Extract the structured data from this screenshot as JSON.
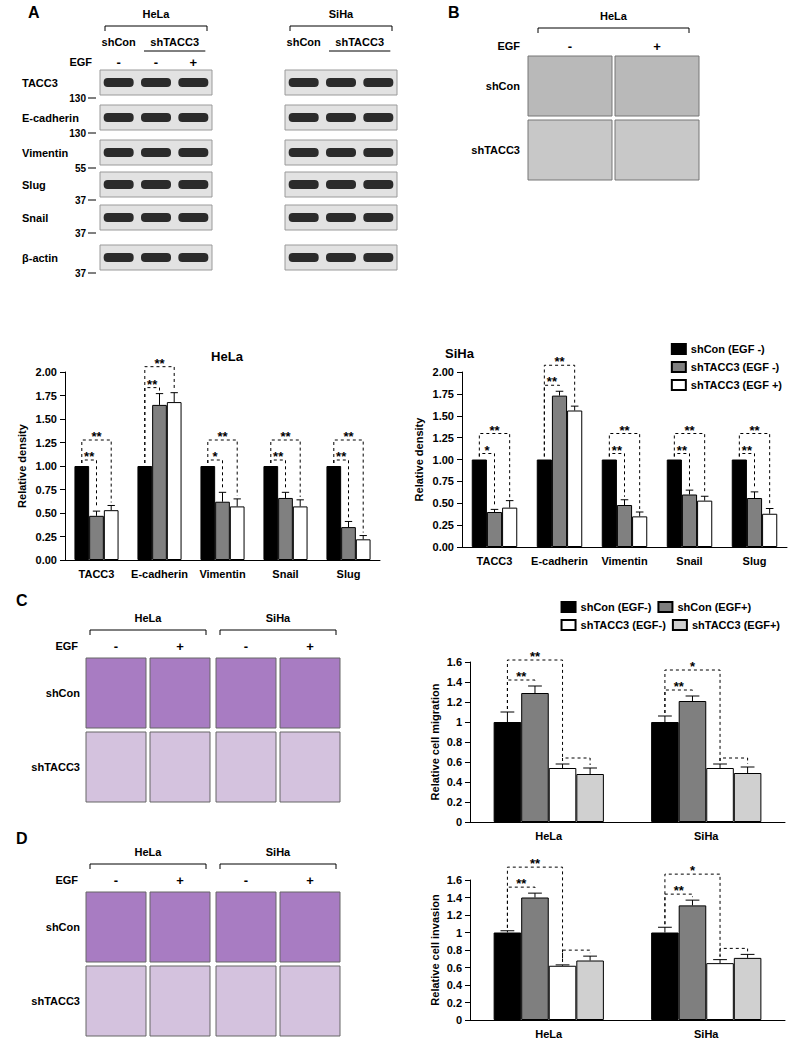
{
  "chart_data": [
    {
      "type": "bar",
      "title": "HeLa",
      "y_label": "Relative density",
      "categories": [
        "TACC3",
        "E-cadherin",
        "Vimentin",
        "Snail",
        "Slug"
      ],
      "series": [
        {
          "name": "shCon (EGF -)",
          "color": "#000000",
          "values": [
            1,
            1,
            1,
            1,
            1
          ],
          "errors": [
            0,
            0,
            0,
            0,
            0
          ]
        },
        {
          "name": "shTACC3 (EGF -)",
          "color": "#808080",
          "values": [
            0.47,
            1.65,
            0.62,
            0.66,
            0.35
          ],
          "errors": [
            0.05,
            0.12,
            0.1,
            0.06,
            0.06
          ]
        },
        {
          "name": "shTACC3 (EGF +)",
          "color": "#ffffff",
          "values": [
            0.53,
            1.68,
            0.57,
            0.57,
            0.22
          ],
          "errors": [
            0.05,
            0.1,
            0.08,
            0.07,
            0.04
          ]
        }
      ],
      "ylim": [
        0,
        2
      ],
      "yticks": [
        {
          "value": 0,
          "label": "0.00"
        },
        {
          "value": 0.25,
          "label": "0.25"
        },
        {
          "value": 0.5,
          "label": "0.50"
        },
        {
          "value": 0.75,
          "label": "0.75"
        },
        {
          "value": 1,
          "label": "1.00"
        },
        {
          "value": 1.25,
          "label": "1.25"
        },
        {
          "value": 1.5,
          "label": "1.50"
        },
        {
          "value": 1.75,
          "label": "1.75"
        },
        {
          "value": 2,
          "label": "2.00"
        }
      ],
      "grid": false,
      "significance": [
        {
          "category": "TACC3",
          "from": "shCon (EGF -)",
          "to": "shTACC3 (EGF -)",
          "label": "**"
        },
        {
          "category": "TACC3",
          "from": "shCon (EGF -)",
          "to": "shTACC3 (EGF +)",
          "label": "**"
        },
        {
          "category": "E-cadherin",
          "from": "shCon (EGF -)",
          "to": "shTACC3 (EGF -)",
          "label": "**"
        },
        {
          "category": "E-cadherin",
          "from": "shCon (EGF -)",
          "to": "shTACC3 (EGF +)",
          "label": "**"
        },
        {
          "category": "Vimentin",
          "from": "shCon (EGF -)",
          "to": "shTACC3 (EGF -)",
          "label": "*"
        },
        {
          "category": "Vimentin",
          "from": "shCon (EGF -)",
          "to": "shTACC3 (EGF +)",
          "label": "**"
        },
        {
          "category": "Snail",
          "from": "shCon (EGF -)",
          "to": "shTACC3 (EGF -)",
          "label": "**"
        },
        {
          "category": "Snail",
          "from": "shCon (EGF -)",
          "to": "shTACC3 (EGF +)",
          "label": "**"
        },
        {
          "category": "Slug",
          "from": "shCon (EGF -)",
          "to": "shTACC3 (EGF -)",
          "label": "**"
        },
        {
          "category": "Slug",
          "from": "shCon (EGF -)",
          "to": "shTACC3 (EGF +)",
          "label": "**"
        }
      ]
    },
    {
      "type": "bar",
      "title": "SiHa",
      "y_label": "Relative density",
      "categories": [
        "TACC3",
        "E-cadherin",
        "Vimentin",
        "Snail",
        "Slug"
      ],
      "series": [
        {
          "name": "shCon (EGF -)",
          "color": "#000000",
          "values": [
            1,
            1,
            1,
            1,
            1
          ],
          "errors": [
            0,
            0,
            0,
            0,
            0
          ]
        },
        {
          "name": "shTACC3 (EGF -)",
          "color": "#808080",
          "values": [
            0.4,
            1.73,
            0.48,
            0.6,
            0.56
          ],
          "errors": [
            0.03,
            0.05,
            0.06,
            0.05,
            0.07
          ]
        },
        {
          "name": "shTACC3 (EGF +)",
          "color": "#ffffff",
          "values": [
            0.45,
            1.56,
            0.35,
            0.53,
            0.38
          ],
          "errors": [
            0.08,
            0.05,
            0.05,
            0.05,
            0.06
          ]
        }
      ],
      "ylim": [
        0,
        2
      ],
      "yticks": [
        {
          "value": 0,
          "label": "0.00"
        },
        {
          "value": 0.25,
          "label": "0.25"
        },
        {
          "value": 0.5,
          "label": "0.50"
        },
        {
          "value": 0.75,
          "label": "0.75"
        },
        {
          "value": 1,
          "label": "1.00"
        },
        {
          "value": 1.25,
          "label": "1.25"
        },
        {
          "value": 1.5,
          "label": "1.50"
        },
        {
          "value": 1.75,
          "label": "1.75"
        },
        {
          "value": 2,
          "label": "2.00"
        }
      ],
      "grid": false,
      "legend": "top-right",
      "significance": [
        {
          "category": "TACC3",
          "from": "shCon (EGF -)",
          "to": "shTACC3 (EGF -)",
          "label": "*"
        },
        {
          "category": "TACC3",
          "from": "shCon (EGF -)",
          "to": "shTACC3 (EGF +)",
          "label": "**"
        },
        {
          "category": "E-cadherin",
          "from": "shCon (EGF -)",
          "to": "shTACC3 (EGF -)",
          "label": "**"
        },
        {
          "category": "E-cadherin",
          "from": "shCon (EGF -)",
          "to": "shTACC3 (EGF +)",
          "label": "**"
        },
        {
          "category": "Vimentin",
          "from": "shCon (EGF -)",
          "to": "shTACC3 (EGF -)",
          "label": "**"
        },
        {
          "category": "Vimentin",
          "from": "shCon (EGF -)",
          "to": "shTACC3 (EGF +)",
          "label": "**"
        },
        {
          "category": "Snail",
          "from": "shCon (EGF -)",
          "to": "shTACC3 (EGF -)",
          "label": "**"
        },
        {
          "category": "Snail",
          "from": "shCon (EGF -)",
          "to": "shTACC3 (EGF +)",
          "label": "**"
        },
        {
          "category": "Slug",
          "from": "shCon (EGF -)",
          "to": "shTACC3 (EGF -)",
          "label": "**"
        },
        {
          "category": "Slug",
          "from": "shCon (EGF -)",
          "to": "shTACC3 (EGF +)",
          "label": "**"
        }
      ]
    },
    {
      "type": "bar",
      "y_label": "Relative cell migration",
      "categories": [
        "HeLa",
        "SiHa"
      ],
      "series": [
        {
          "name": "shCon (EGF-)",
          "color": "#000000",
          "values": [
            1,
            1
          ],
          "errors": [
            0.1,
            0.06
          ]
        },
        {
          "name": "shCon (EGF+)",
          "color": "#7f7f7f",
          "values": [
            1.29,
            1.21
          ],
          "errors": [
            0.07,
            0.05
          ]
        },
        {
          "name": "shTACC3 (EGF-)",
          "color": "#ffffff",
          "values": [
            0.54,
            0.54
          ],
          "errors": [
            0.04,
            0.04
          ]
        },
        {
          "name": "shTACC3 (EGF+)",
          "color": "#d0d0d0",
          "values": [
            0.48,
            0.49
          ],
          "errors": [
            0.06,
            0.06
          ]
        }
      ],
      "ylim": [
        0,
        1.6
      ],
      "yticks": [
        0,
        0.2,
        0.4,
        0.6,
        0.8,
        1,
        1.2,
        1.4,
        1.6
      ],
      "grid": false,
      "legend": "top-right",
      "significance": [
        {
          "category": "HeLa",
          "from": "shCon (EGF-)",
          "to": "shCon (EGF+)",
          "label": "**"
        },
        {
          "category": "HeLa",
          "from": "shCon (EGF-)",
          "to": "shTACC3 (EGF-)",
          "label": "**"
        },
        {
          "category": "HeLa",
          "from": "shTACC3 (EGF-)",
          "to": "shTACC3 (EGF+)"
        },
        {
          "category": "SiHa",
          "from": "shCon (EGF-)",
          "to": "shCon (EGF+)",
          "label": "**"
        },
        {
          "category": "SiHa",
          "from": "shCon (EGF-)",
          "to": "shTACC3 (EGF-)",
          "label": "*"
        },
        {
          "category": "SiHa",
          "from": "shTACC3 (EGF-)",
          "to": "shTACC3 (EGF+)"
        }
      ]
    },
    {
      "type": "bar",
      "y_label": "Relative cell invasion",
      "categories": [
        "HeLa",
        "SiHa"
      ],
      "series": [
        {
          "name": "shCon (EGF-)",
          "color": "#000000",
          "values": [
            1,
            1
          ],
          "errors": [
            0.02,
            0.06
          ]
        },
        {
          "name": "shCon (EGF+)",
          "color": "#7f7f7f",
          "values": [
            1.4,
            1.31
          ],
          "errors": [
            0.05,
            0.06
          ]
        },
        {
          "name": "shTACC3 (EGF-)",
          "color": "#ffffff",
          "values": [
            0.62,
            0.65
          ],
          "errors": [
            0.01,
            0.04
          ]
        },
        {
          "name": "shTACC3 (EGF+)",
          "color": "#d0d0d0",
          "values": [
            0.68,
            0.71
          ],
          "errors": [
            0.05,
            0.04
          ]
        }
      ],
      "ylim": [
        0,
        1.6
      ],
      "yticks": [
        0,
        0.2,
        0.4,
        0.6,
        0.8,
        1,
        1.2,
        1.4,
        1.6
      ],
      "grid": false,
      "significance": [
        {
          "category": "HeLa",
          "from": "shCon (EGF-)",
          "to": "shCon (EGF+)",
          "label": "**"
        },
        {
          "category": "HeLa",
          "from": "shCon (EGF-)",
          "to": "shTACC3 (EGF-)",
          "label": "**"
        },
        {
          "category": "HeLa",
          "from": "shTACC3 (EGF-)",
          "to": "shTACC3 (EGF+)"
        },
        {
          "category": "SiHa",
          "from": "shCon (EGF-)",
          "to": "shCon (EGF+)",
          "label": "**"
        },
        {
          "category": "SiHa",
          "from": "shCon (EGF-)",
          "to": "shTACC3 (EGF-)",
          "label": "*"
        },
        {
          "category": "SiHa",
          "from": "shTACC3 (EGF-)",
          "to": "shTACC3 (EGF+)"
        }
      ]
    }
  ],
  "figure": {
    "panels": [
      "A",
      "B",
      "C",
      "D"
    ],
    "blot": {
      "cell_lines": [
        "HeLa",
        "SiHa"
      ],
      "groups": [
        "shCon",
        "shTACC3"
      ],
      "treatment": "EGF",
      "lanes": [
        "-",
        "-",
        "+"
      ],
      "rows": [
        {
          "label": "TACC3",
          "marker": 130
        },
        {
          "label": "E-cadherin",
          "marker": 130
        },
        {
          "label": "Vimentin",
          "marker": 55
        },
        {
          "label": "Slug",
          "marker": 37
        },
        {
          "label": "Snail",
          "marker": 37
        },
        {
          "label": "β-actin",
          "marker": 37
        }
      ]
    },
    "morphology": {
      "cell_line": "HeLa",
      "treatment": "EGF",
      "columns": [
        "-",
        "+"
      ],
      "rows": [
        "shCon",
        "shTACC3"
      ]
    },
    "transwell": [
      {
        "cell_lines": [
          "HeLa",
          "SiHa"
        ],
        "treatment": "EGF",
        "columns": [
          "-",
          "+"
        ],
        "rows": [
          "shCon",
          "shTACC3"
        ]
      },
      {
        "cell_lines": [
          "HeLa",
          "SiHa"
        ],
        "treatment": "EGF",
        "columns": [
          "-",
          "+"
        ],
        "rows": [
          "shCon",
          "shTACC3"
        ]
      }
    ]
  }
}
